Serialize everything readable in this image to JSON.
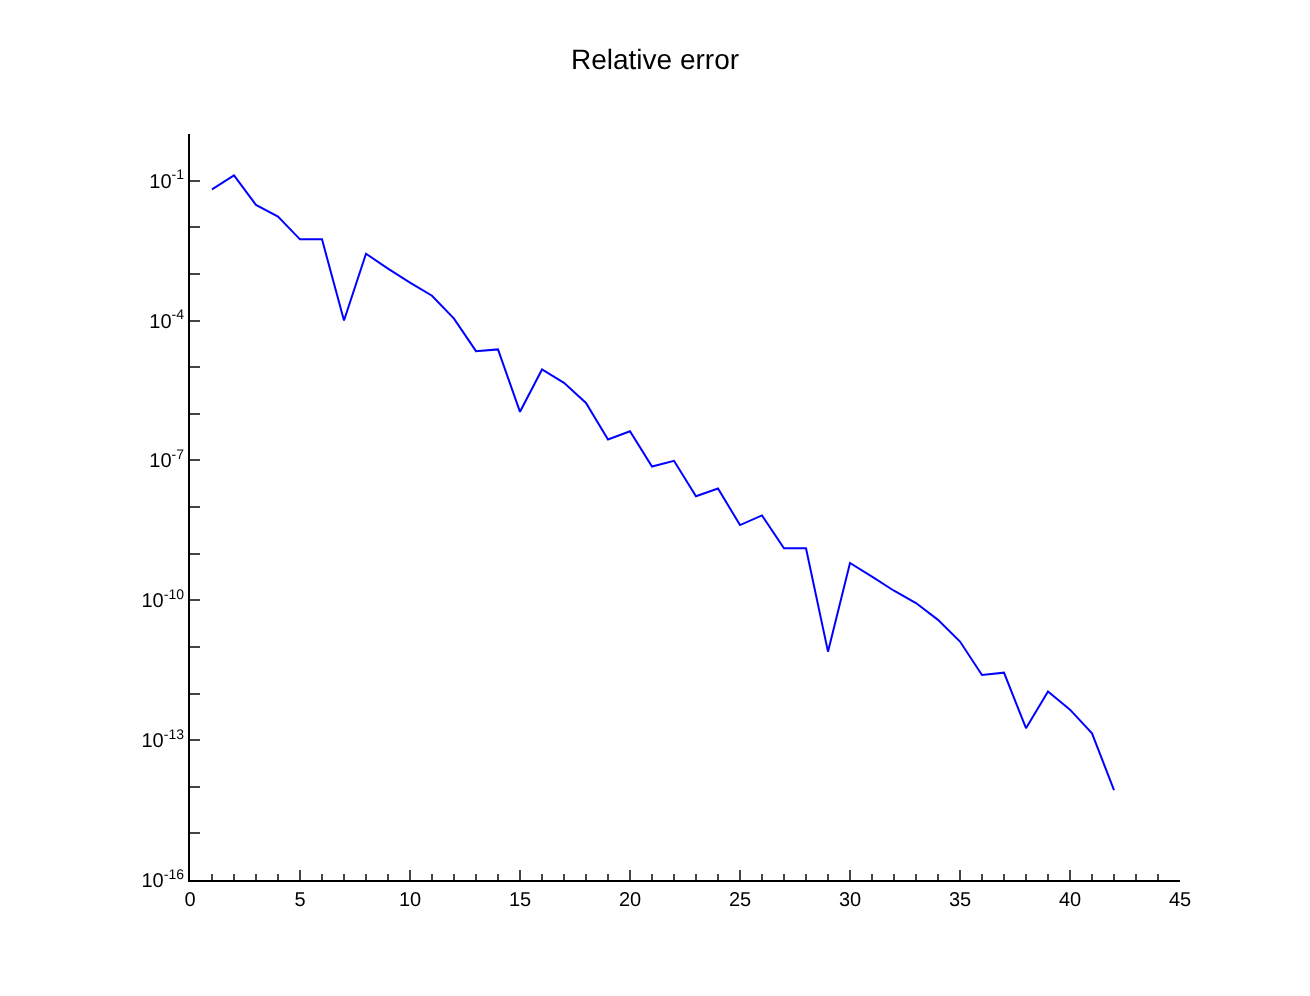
{
  "chart_data": {
    "type": "line",
    "title": "Relative error",
    "x": [
      1,
      2,
      3,
      4,
      5,
      6,
      7,
      8,
      9,
      10,
      11,
      12,
      13,
      14,
      15,
      16,
      17,
      18,
      19,
      20,
      21,
      22,
      23,
      24,
      25,
      26,
      27,
      28,
      29,
      30,
      31,
      32,
      33,
      34,
      35,
      36,
      37,
      38,
      39,
      40,
      41,
      42
    ],
    "series": [
      {
        "color": "#0000ff",
        "values": [
          0.065,
          0.13,
          0.03,
          0.017,
          0.0055,
          0.0055,
          0.0001,
          0.0027,
          0.0013,
          0.00065,
          0.00034,
          0.00011,
          2.2e-05,
          2.4e-05,
          1.1e-06,
          8.9e-06,
          4.6e-06,
          1.7e-06,
          2.8e-07,
          4.2e-07,
          7.4e-08,
          9.8e-08,
          1.7e-08,
          2.5e-08,
          4.1e-09,
          6.6e-09,
          1.3e-09,
          1.3e-09,
          7.9e-12,
          6.3e-10,
          3.2e-10,
          1.6e-10,
          8.7e-11,
          3.8e-11,
          1.3e-11,
          2.5e-12,
          2.8e-12,
          1.8e-13,
          1.1e-12,
          4.5e-13,
          1.4e-13,
          8.5e-15
        ]
      }
    ],
    "log": "y",
    "xlim": [
      0,
      45
    ],
    "xticks": [
      0,
      5,
      10,
      15,
      20,
      25,
      30,
      35,
      40,
      45
    ],
    "ylim": [
      1e-16,
      1
    ],
    "yticks": [
      {
        "value": 1e-16,
        "label": "10$^{-16}$"
      },
      {
        "value": 1e-15,
        "label": null
      },
      {
        "value": 1e-14,
        "label": null
      },
      {
        "value": 1e-13,
        "label": "10$^{-13}$"
      },
      {
        "value": 1e-12,
        "label": null
      },
      {
        "value": 1e-11,
        "label": null
      },
      {
        "value": 1e-10,
        "label": "10$^{-10}$"
      },
      {
        "value": 1e-09,
        "label": null
      },
      {
        "value": 1e-08,
        "label": null
      },
      {
        "value": 1e-07,
        "label": "10$^{-7}$"
      },
      {
        "value": 1e-06,
        "label": null
      },
      {
        "value": 1e-05,
        "label": null
      },
      {
        "value": 0.0001,
        "label": "10$^{-4}$"
      },
      {
        "value": 0.001,
        "label": null
      },
      {
        "value": 0.01,
        "label": null
      },
      {
        "value": 0.1,
        "label": "10$^{-1}$"
      }
    ],
    "marker": "none",
    "line_style": "solid"
  }
}
